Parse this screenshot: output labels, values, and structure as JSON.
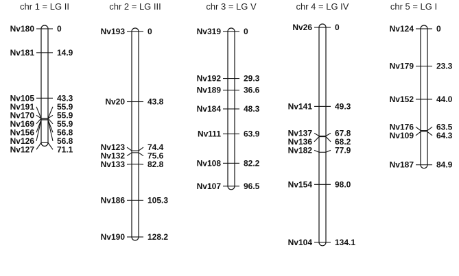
{
  "chromosomes": [
    {
      "title": "chr 1 = LG II",
      "markers": [
        {
          "name": "Nv180",
          "pos": "0"
        },
        {
          "name": "Nv181",
          "pos": "14.9"
        },
        {
          "name": "Nv105",
          "pos": "43.3"
        },
        {
          "name": "Nv191",
          "pos": "55.9"
        },
        {
          "name": "Nv170",
          "pos": "55.9"
        },
        {
          "name": "Nv169",
          "pos": "55.9"
        },
        {
          "name": "Nv156",
          "pos": "56.8"
        },
        {
          "name": "Nv126",
          "pos": "56.8"
        },
        {
          "name": "Nv127",
          "pos": "71.1"
        }
      ]
    },
    {
      "title": "chr 2 = LG III",
      "markers": [
        {
          "name": "Nv193",
          "pos": "0"
        },
        {
          "name": "Nv20",
          "pos": "43.8"
        },
        {
          "name": "Nv123",
          "pos": "74.4"
        },
        {
          "name": "Nv132",
          "pos": "75.6"
        },
        {
          "name": "Nv133",
          "pos": "82.8"
        },
        {
          "name": "Nv186",
          "pos": "105.3"
        },
        {
          "name": "Nv190",
          "pos": "128.2"
        }
      ]
    },
    {
      "title": "chr 3 = LG V",
      "markers": [
        {
          "name": "Nv319",
          "pos": "0"
        },
        {
          "name": "Nv192",
          "pos": "29.3"
        },
        {
          "name": "Nv189",
          "pos": "36.6"
        },
        {
          "name": "Nv184",
          "pos": "48.3"
        },
        {
          "name": "Nv111",
          "pos": "63.9"
        },
        {
          "name": "Nv108",
          "pos": "82.2"
        },
        {
          "name": "Nv107",
          "pos": "96.5"
        }
      ]
    },
    {
      "title": "chr 4 = LG IV",
      "markers": [
        {
          "name": "Nv26",
          "pos": "0"
        },
        {
          "name": "Nv141",
          "pos": "49.3"
        },
        {
          "name": "Nv137",
          "pos": "67.8"
        },
        {
          "name": "Nv136",
          "pos": "68.2"
        },
        {
          "name": "Nv182",
          "pos": "77.9"
        },
        {
          "name": "Nv154",
          "pos": "98.0"
        },
        {
          "name": "Nv104",
          "pos": "134.1"
        }
      ]
    },
    {
      "title": "chr 5 = LG I",
      "markers": [
        {
          "name": "Nv124",
          "pos": "0"
        },
        {
          "name": "Nv179",
          "pos": "23.3"
        },
        {
          "name": "Nv152",
          "pos": "44.0"
        },
        {
          "name": "Nv176",
          "pos": "63.5"
        },
        {
          "name": "Nv109",
          "pos": "64.3"
        },
        {
          "name": "Nv187",
          "pos": "84.9"
        }
      ]
    }
  ]
}
